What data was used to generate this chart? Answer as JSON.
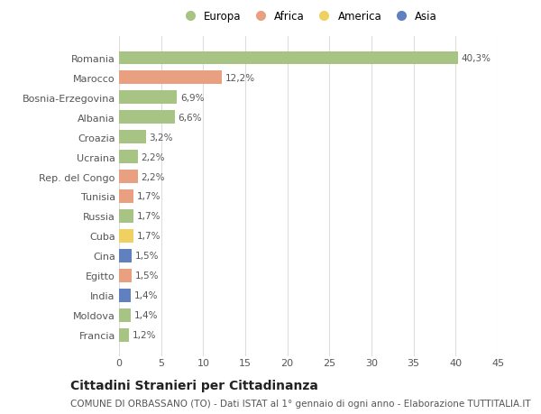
{
  "countries": [
    "Francia",
    "Moldova",
    "India",
    "Egitto",
    "Cina",
    "Cuba",
    "Russia",
    "Tunisia",
    "Rep. del Congo",
    "Ucraina",
    "Croazia",
    "Albania",
    "Bosnia-Erzegovina",
    "Marocco",
    "Romania"
  ],
  "values": [
    1.2,
    1.4,
    1.4,
    1.5,
    1.5,
    1.7,
    1.7,
    1.7,
    2.2,
    2.2,
    3.2,
    6.6,
    6.9,
    12.2,
    40.3
  ],
  "labels": [
    "1,2%",
    "1,4%",
    "1,4%",
    "1,5%",
    "1,5%",
    "1,7%",
    "1,7%",
    "1,7%",
    "2,2%",
    "2,2%",
    "3,2%",
    "6,6%",
    "6,9%",
    "12,2%",
    "40,3%"
  ],
  "categories": [
    "Europa",
    "Europa",
    "Asia",
    "Africa",
    "Asia",
    "America",
    "Europa",
    "Africa",
    "Africa",
    "Europa",
    "Europa",
    "Europa",
    "Europa",
    "Africa",
    "Europa"
  ],
  "colors": {
    "Europa": "#a8c484",
    "Africa": "#e8a080",
    "America": "#f0d060",
    "Asia": "#6080c0"
  },
  "legend_order": [
    "Europa",
    "Africa",
    "America",
    "Asia"
  ],
  "legend_colors": [
    "#a8c484",
    "#e8a080",
    "#f0d060",
    "#6080c0"
  ],
  "title": "Cittadini Stranieri per Cittadinanza",
  "subtitle": "COMUNE DI ORBASSANO (TO) - Dati ISTAT al 1° gennaio di ogni anno - Elaborazione TUTTITALIA.IT",
  "xlim": [
    0,
    45
  ],
  "xticks": [
    0,
    5,
    10,
    15,
    20,
    25,
    30,
    35,
    40,
    45
  ],
  "background_color": "#ffffff",
  "grid_color": "#dddddd",
  "bar_height": 0.65,
  "title_fontsize": 10,
  "subtitle_fontsize": 7.5,
  "label_fontsize": 7.5,
  "tick_fontsize": 8,
  "legend_fontsize": 8.5
}
